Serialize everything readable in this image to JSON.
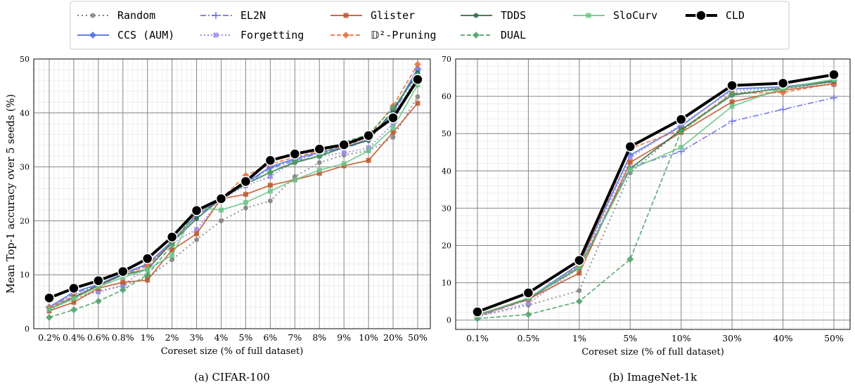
{
  "legend": [
    {
      "name": "Random",
      "color": "#7f7f7f",
      "dash": "2,4",
      "marker": "circle",
      "width": 2
    },
    {
      "name": "CCS (AUM)",
      "color": "#4a6fe3",
      "dash": "",
      "marker": "diamond",
      "width": 1.8
    },
    {
      "name": "EL2N",
      "color": "#6f6fea",
      "dash": "8,3,2,3",
      "marker": "plus",
      "width": 1.8
    },
    {
      "name": "Forgetting",
      "color": "#9a8ce6",
      "dash": "2,3",
      "marker": "square",
      "width": 2
    },
    {
      "name": "Glister",
      "color": "#c0562a",
      "dash": "",
      "marker": "square",
      "width": 1.8
    },
    {
      "name": "𝔻²-Pruning",
      "color": "#e8703a",
      "dash": "6,3",
      "marker": "diamond",
      "width": 1.8
    },
    {
      "name": "TDDS",
      "color": "#2f6b45",
      "dash": "",
      "marker": "circle",
      "width": 1.8
    },
    {
      "name": "DUAL",
      "color": "#4ea36a",
      "dash": "6,3",
      "marker": "diamond",
      "width": 1.8
    },
    {
      "name": "SloCurv",
      "color": "#6cc58a",
      "dash": "",
      "marker": "square",
      "width": 1.8
    },
    {
      "name": "CLD",
      "color": "#000000",
      "dash": "",
      "marker": "bigcircle",
      "width": 4
    }
  ],
  "chart_data": [
    {
      "type": "line",
      "caption": "(a) CIFAR-100",
      "xlabel": "Coreset size (% of full dataset)",
      "ylabel": "Mean Top-1 accuracy over 5 seeds (%)",
      "ylim": [
        0,
        50
      ],
      "yticks": [
        0,
        10,
        20,
        30,
        40,
        50
      ],
      "categories": [
        "0.2%",
        "0.4%",
        "0.6%",
        "0.8%",
        "1%",
        "2%",
        "3%",
        "4%",
        "5%",
        "6%",
        "7%",
        "8%",
        "9%",
        "10%",
        "20%",
        "50%"
      ],
      "series": [
        {
          "name": "Random",
          "values": [
            3.6,
            5.5,
            7.0,
            8.0,
            9.5,
            12.8,
            16.5,
            20.0,
            22.4,
            23.7,
            28.2,
            30.8,
            32.2,
            33.0,
            35.5,
            43.0
          ]
        },
        {
          "name": "CCS (AUM)",
          "values": [
            4.0,
            6.8,
            8.2,
            10.2,
            12.0,
            16.2,
            21.0,
            24.0,
            27.0,
            30.0,
            31.5,
            32.7,
            33.6,
            35.1,
            40.2,
            48.2
          ]
        },
        {
          "name": "EL2N",
          "values": [
            4.0,
            6.5,
            8.0,
            10.2,
            11.8,
            16.0,
            21.0,
            24.0,
            26.8,
            29.8,
            31.2,
            32.6,
            33.4,
            35.0,
            39.8,
            48.0
          ]
        },
        {
          "name": "Forgetting",
          "values": [
            3.9,
            6.2,
            6.8,
            8.0,
            11.5,
            15.8,
            18.4,
            24.0,
            26.5,
            28.2,
            31.0,
            32.0,
            32.6,
            33.5,
            38.0,
            47.8
          ]
        },
        {
          "name": "Glister",
          "values": [
            3.3,
            4.9,
            7.5,
            8.6,
            9.0,
            14.6,
            17.6,
            24.1,
            24.9,
            26.6,
            27.6,
            28.8,
            30.2,
            31.2,
            36.4,
            41.8
          ]
        },
        {
          "name": "𝔻²-Pruning",
          "values": [
            3.9,
            6.0,
            7.9,
            10.0,
            11.6,
            16.0,
            21.5,
            24.1,
            28.4,
            30.5,
            31.8,
            32.9,
            33.8,
            35.5,
            41.3,
            49.0
          ]
        },
        {
          "name": "TDDS",
          "values": [
            3.6,
            5.8,
            8.0,
            10.0,
            11.0,
            16.0,
            20.4,
            24.1,
            26.8,
            29.0,
            30.8,
            32.0,
            33.6,
            34.9,
            40.5,
            47.5
          ]
        },
        {
          "name": "DUAL",
          "values": [
            2.1,
            3.5,
            5.1,
            7.2,
            10.0,
            15.5,
            22.0,
            24.0,
            26.9,
            29.0,
            31.0,
            32.0,
            34.6,
            36.0,
            41.0,
            47.0
          ]
        },
        {
          "name": "SloCurv",
          "values": [
            3.6,
            5.6,
            7.8,
            9.5,
            11.0,
            13.6,
            22.5,
            22.0,
            23.4,
            25.5,
            27.6,
            29.4,
            30.6,
            33.0,
            37.2,
            45.2
          ]
        },
        {
          "name": "CLD",
          "values": [
            5.7,
            7.5,
            8.9,
            10.6,
            13.0,
            17.0,
            21.9,
            24.1,
            27.3,
            31.2,
            32.4,
            33.3,
            34.1,
            35.8,
            39.1,
            46.2
          ]
        }
      ]
    },
    {
      "type": "line",
      "caption": "(b) ImageNet-1k",
      "xlabel": "Coreset size (% of full dataset)",
      "ylabel": "",
      "ylim": [
        -2.5,
        70
      ],
      "yticks": [
        0,
        10,
        20,
        30,
        40,
        50,
        60,
        70
      ],
      "categories": [
        "0.1%",
        "0.5%",
        "1%",
        "5%",
        "10%",
        "30%",
        "40%",
        "50%"
      ],
      "series": [
        {
          "name": "Random",
          "values": [
            1.0,
            4.0,
            7.9,
            39.5,
            51.0,
            60.8,
            62.0,
            64.0
          ]
        },
        {
          "name": "CCS (AUM)",
          "values": [
            1.2,
            5.8,
            15.0,
            44.2,
            52.0,
            62.0,
            62.5,
            64.2
          ]
        },
        {
          "name": "EL2N",
          "values": [
            1.0,
            5.5,
            14.5,
            41.0,
            45.2,
            53.3,
            56.5,
            59.6
          ]
        },
        {
          "name": "Forgetting",
          "values": [
            1.0,
            4.5,
            14.0,
            43.5,
            52.5,
            61.5,
            62.3,
            63.1
          ]
        },
        {
          "name": "Glister",
          "values": [
            1.2,
            5.6,
            12.6,
            42.3,
            50.3,
            58.5,
            61.6,
            63.4
          ]
        },
        {
          "name": "𝔻²-Pruning",
          "values": [
            1.4,
            5.7,
            14.5,
            46.0,
            51.0,
            60.8,
            61.0,
            63.5
          ]
        },
        {
          "name": "TDDS",
          "values": [
            1.4,
            5.8,
            14.0,
            40.6,
            51.0,
            60.3,
            62.2,
            64.0
          ]
        },
        {
          "name": "DUAL",
          "values": [
            0.4,
            1.5,
            5.0,
            16.3,
            50.6,
            60.6,
            62.0,
            64.5
          ]
        },
        {
          "name": "SloCurv",
          "values": [
            1.3,
            5.9,
            14.2,
            40.4,
            46.3,
            57.3,
            62.2,
            64.5
          ]
        },
        {
          "name": "CLD",
          "values": [
            2.2,
            7.3,
            16.0,
            46.5,
            53.8,
            62.9,
            63.5,
            65.8
          ]
        }
      ]
    }
  ]
}
